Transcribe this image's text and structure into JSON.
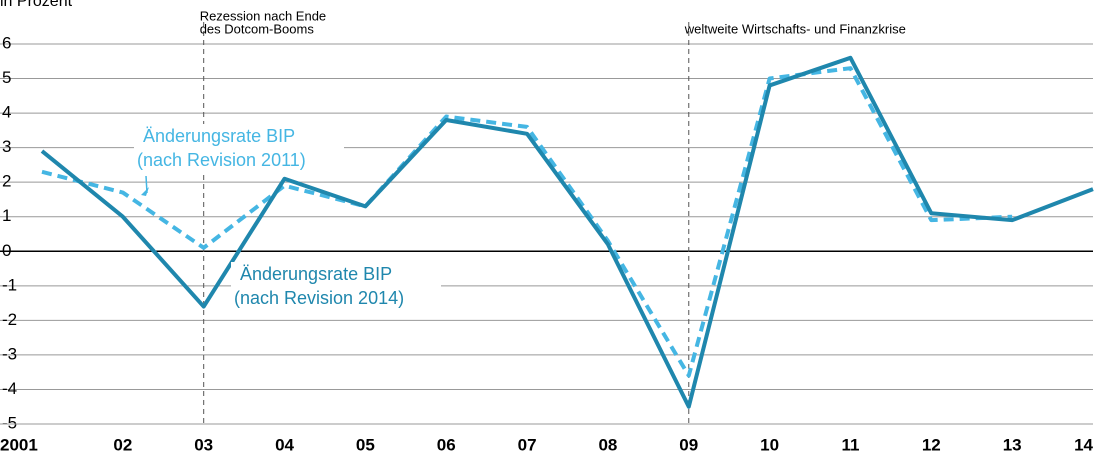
{
  "chart_data": {
    "type": "line",
    "ylabel": "in Prozent",
    "categories": [
      "2001",
      "02",
      "03",
      "04",
      "05",
      "06",
      "07",
      "08",
      "09",
      "10",
      "11",
      "12",
      "13",
      "14"
    ],
    "series": [
      {
        "name": "Änderungsrate BIP (nach Revision 2011)",
        "color": "#45b6e3",
        "dashed": true,
        "values": [
          2.3,
          1.7,
          0.1,
          1.9,
          1.3,
          3.9,
          3.6,
          0.3,
          -3.6,
          5.0,
          5.3,
          0.9,
          1.0,
          null
        ]
      },
      {
        "name": "Änderungsrate BIP (nach Revision 2014)",
        "color": "#1f87ad",
        "dashed": false,
        "values": [
          2.9,
          1.0,
          -1.6,
          2.1,
          1.3,
          3.8,
          3.4,
          0.2,
          -4.5,
          4.8,
          5.6,
          1.1,
          0.9,
          1.8
        ]
      }
    ],
    "annotations": [
      {
        "category": 2,
        "lines": [
          "Rezession nach Ende",
          "des Dotcom-Booms"
        ]
      },
      {
        "category": 8,
        "lines": [
          "weltweite Wirtschafts- und Finanzkrise"
        ]
      }
    ],
    "ylim": [
      -5,
      6
    ],
    "yticks": [
      -5,
      -4,
      -3,
      -2,
      -1,
      0,
      1,
      2,
      3,
      4,
      5,
      6
    ],
    "grid": true
  }
}
